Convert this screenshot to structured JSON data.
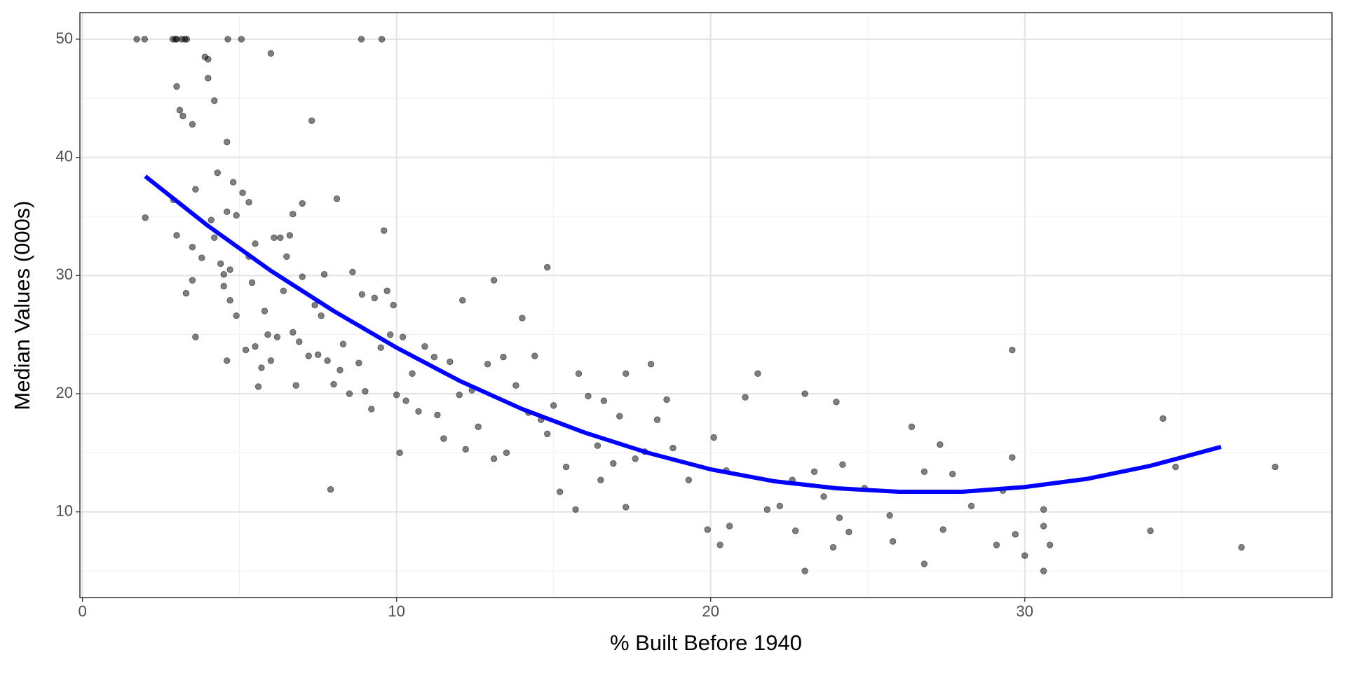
{
  "chart_data": {
    "type": "scatter",
    "x_label": "% Built Before 1940",
    "y_label": "Median Values (000s)",
    "x": [
      1.73,
      1.98,
      2.88,
      2.96,
      3.0,
      3.16,
      3.26,
      3.32,
      4.63,
      5.06,
      8.88,
      9.53,
      2.0,
      2.9,
      3.0,
      3.0,
      3.1,
      3.2,
      3.5,
      3.3,
      3.5,
      3.5,
      3.6,
      3.6,
      3.8,
      3.9,
      4.0,
      4.0,
      4.1,
      4.2,
      4.2,
      4.3,
      4.4,
      4.5,
      4.5,
      4.6,
      4.6,
      4.6,
      4.7,
      4.7,
      4.8,
      4.9,
      4.9,
      5.1,
      5.2,
      5.3,
      5.3,
      5.4,
      5.5,
      5.5,
      5.6,
      5.7,
      5.8,
      5.9,
      6.0,
      6.0,
      6.1,
      6.2,
      6.3,
      6.4,
      6.5,
      6.6,
      6.7,
      6.7,
      6.8,
      6.9,
      7.0,
      7.0,
      7.2,
      7.3,
      7.4,
      7.5,
      7.6,
      7.7,
      7.8,
      7.9,
      8.0,
      8.1,
      8.2,
      8.3,
      8.5,
      8.6,
      8.8,
      8.9,
      9.0,
      9.2,
      9.3,
      9.5,
      9.6,
      9.7,
      9.8,
      9.9,
      10.0,
      10.1,
      10.2,
      10.3,
      10.5,
      10.7,
      10.9,
      11.2,
      11.3,
      11.5,
      11.7,
      12.0,
      12.1,
      12.2,
      12.4,
      12.6,
      12.9,
      13.1,
      13.1,
      13.4,
      13.5,
      13.8,
      14.0,
      14.2,
      14.4,
      14.6,
      14.8,
      14.8,
      15.0,
      15.2,
      15.4,
      15.7,
      15.8,
      16.1,
      16.4,
      16.5,
      16.6,
      16.9,
      17.1,
      17.3,
      17.3,
      17.6,
      17.9,
      18.1,
      18.3,
      18.6,
      18.8,
      19.3,
      19.9,
      20.1,
      20.3,
      20.5,
      20.6,
      21.1,
      21.5,
      21.8,
      22.2,
      22.6,
      22.7,
      23.0,
      23.0,
      23.3,
      23.6,
      23.9,
      24.0,
      24.1,
      24.2,
      24.4,
      24.9,
      25.7,
      25.8,
      26.4,
      26.8,
      26.8,
      27.3,
      27.4,
      27.7,
      28.3,
      29.1,
      29.3,
      29.6,
      29.6,
      29.7,
      30.0,
      30.6,
      30.6,
      30.6,
      30.8,
      34.0,
      34.4,
      34.8,
      36.9,
      37.97
    ],
    "y": [
      50,
      50,
      50,
      50,
      50,
      50,
      50,
      50,
      50,
      50,
      50,
      50,
      34.9,
      36.4,
      33.4,
      46.0,
      44.0,
      43.5,
      42.8,
      28.5,
      29.6,
      32.4,
      24.8,
      37.3,
      31.5,
      48.5,
      48.3,
      46.7,
      34.7,
      44.8,
      33.2,
      38.7,
      31.0,
      30.1,
      29.1,
      41.3,
      35.4,
      22.8,
      30.5,
      27.9,
      37.9,
      35.1,
      26.6,
      37.0,
      23.7,
      31.6,
      36.2,
      29.4,
      24.0,
      32.7,
      20.6,
      22.2,
      27.0,
      25.0,
      48.8,
      22.8,
      33.2,
      24.8,
      33.2,
      28.7,
      31.6,
      33.4,
      25.2,
      35.2,
      20.7,
      24.4,
      36.1,
      29.9,
      23.2,
      43.1,
      27.5,
      23.3,
      26.6,
      30.1,
      22.8,
      11.9,
      20.8,
      36.5,
      22.0,
      24.2,
      20.0,
      30.3,
      22.6,
      28.4,
      20.2,
      18.7,
      28.1,
      23.9,
      33.8,
      28.7,
      25.0,
      27.5,
      19.9,
      15.0,
      24.8,
      19.4,
      21.7,
      18.5,
      24.0,
      23.1,
      18.2,
      16.2,
      22.7,
      19.9,
      27.9,
      15.3,
      20.3,
      17.2,
      22.5,
      14.5,
      29.6,
      23.1,
      15.0,
      20.7,
      26.4,
      18.4,
      23.2,
      17.8,
      30.7,
      16.6,
      19.0,
      11.7,
      13.8,
      10.2,
      21.7,
      19.8,
      15.6,
      12.7,
      19.4,
      14.1,
      18.1,
      10.4,
      21.7,
      14.5,
      15.1,
      22.5,
      17.8,
      19.5,
      15.4,
      12.7,
      8.5,
      16.3,
      7.2,
      13.5,
      8.8,
      19.7,
      21.7,
      10.2,
      10.5,
      12.7,
      8.4,
      20.0,
      5.0,
      13.4,
      11.3,
      7.0,
      19.3,
      9.5,
      14.0,
      8.3,
      12.0,
      9.7,
      7.5,
      17.2,
      5.6,
      13.4,
      15.7,
      8.5,
      13.2,
      10.5,
      7.2,
      11.8,
      14.6,
      23.7,
      8.1,
      6.3,
      5.0,
      8.8,
      10.2,
      7.2,
      8.4,
      17.9,
      13.8,
      7.0,
      13.8
    ],
    "point_color": "#000000",
    "fit": {
      "x": [
        2,
        4,
        6,
        8,
        10,
        12,
        14,
        16,
        18,
        20,
        22,
        24,
        26,
        28,
        30,
        32,
        34,
        36.25
      ],
      "y": [
        38.4,
        34.2,
        30.4,
        27.0,
        23.9,
        21.1,
        18.7,
        16.7,
        15.0,
        13.6,
        12.6,
        12.0,
        11.7,
        11.7,
        12.1,
        12.8,
        13.9,
        15.5
      ],
      "color": "#0000ff"
    },
    "xlim": [
      -0.08,
      39.78
    ],
    "ylim": [
      2.75,
      52.25
    ],
    "xticks": [
      0,
      10,
      20,
      30
    ],
    "yticks": [
      10,
      20,
      30,
      40,
      50
    ],
    "xminor": [
      5,
      15,
      25,
      35
    ],
    "yminor": [
      5,
      15,
      25,
      35,
      45
    ],
    "grid": true
  }
}
